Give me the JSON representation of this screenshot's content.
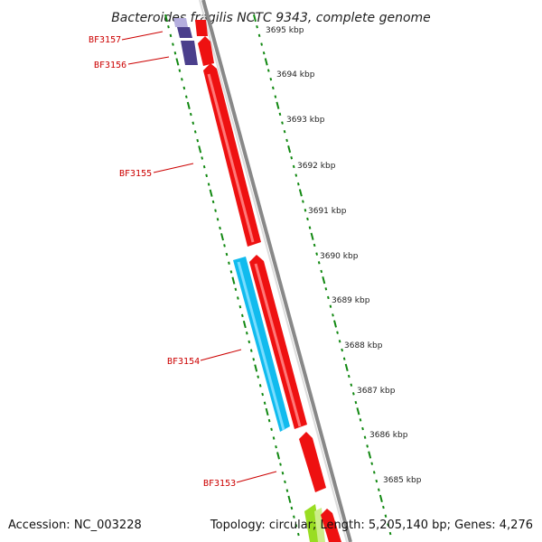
{
  "title": "Bacteroides fragilis NCTC 9343, complete genome",
  "footer": {
    "accession": "Accession: NC_003228",
    "summary": "Topology: circular; Length: 5,205,140 bp; Genes: 4,276"
  },
  "scale": {
    "ticks": [
      "3695 kbp",
      "3694 kbp",
      "3693 kbp",
      "3692 kbp",
      "3691 kbp",
      "3690 kbp",
      "3689 kbp",
      "3688 kbp",
      "3687 kbp",
      "3686 kbp",
      "3685 kbp"
    ]
  },
  "genes": [
    {
      "label": "BF3157",
      "color": "#4b3f8c",
      "strand": "reverse"
    },
    {
      "label": "BF3156",
      "color": "#4b3f8c",
      "strand": "reverse"
    },
    {
      "label": "BF3155",
      "color": "#ee1111",
      "strand": "forward"
    },
    {
      "label": "BF3154",
      "color": "#11bbee",
      "strand": "reverse"
    },
    {
      "label": "BF3153",
      "color": "#ee1111",
      "strand": "forward"
    }
  ],
  "colors": {
    "backbone": "#888888",
    "tick": "#118811",
    "forward_gene": "#ee1111",
    "reverse_gene_blue": "#11bbee",
    "reverse_gene_purple": "#4b3f8c",
    "next_gene": "#99dd22"
  }
}
